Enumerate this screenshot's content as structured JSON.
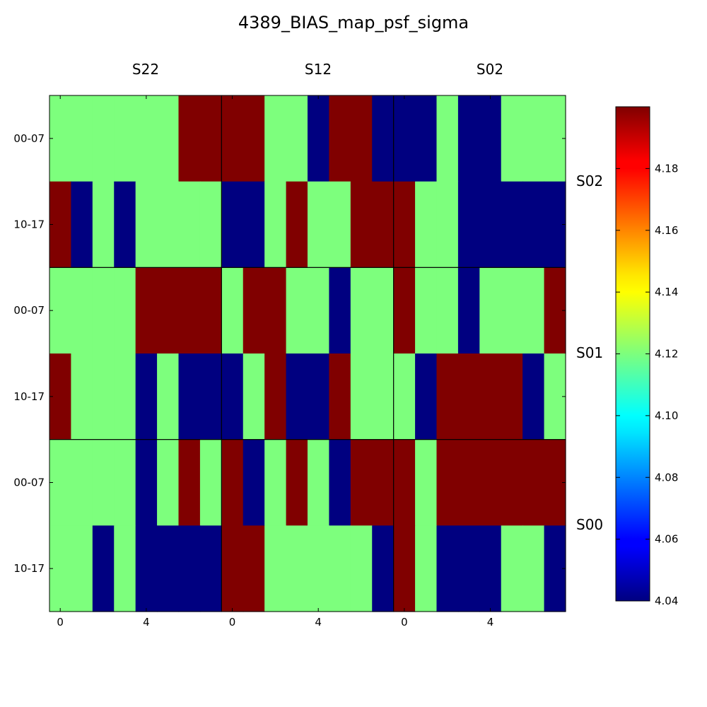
{
  "chart_data": {
    "type": "heatmap",
    "title": "4389_BIAS_map_psf_sigma",
    "panel_columns": [
      "S22",
      "S12",
      "S02"
    ],
    "panel_rows": [
      "S02",
      "S01",
      "S00"
    ],
    "y_tick_labels": [
      "00-07",
      "10-17"
    ],
    "x_tick_labels": [
      "0",
      "4"
    ],
    "x_tick_values": [
      0,
      4
    ],
    "cells_per_panel_x": 8,
    "cells_per_panel_y": 2,
    "colormap": "jet",
    "colorbar": {
      "min": 4.04,
      "max": 4.2,
      "ticks": [
        "4.04",
        "4.06",
        "4.08",
        "4.10",
        "4.12",
        "4.14",
        "4.16",
        "4.18"
      ],
      "tick_values": [
        4.04,
        4.06,
        4.08,
        4.1,
        4.12,
        4.14,
        4.16,
        4.18
      ]
    },
    "value_levels": {
      "low": 4.04,
      "mid": 4.12,
      "high": 4.2
    },
    "grid": [
      [
        [
          [
            1,
            1,
            1,
            1,
            1,
            1,
            2,
            2
          ],
          [
            2,
            0,
            1,
            0,
            1,
            1,
            1,
            1
          ]
        ],
        [
          [
            2,
            2,
            1,
            1,
            0,
            2,
            2,
            0
          ],
          [
            0,
            0,
            1,
            2,
            1,
            1,
            2,
            2
          ]
        ],
        [
          [
            0,
            0,
            1,
            0,
            0,
            1,
            1,
            1
          ],
          [
            2,
            1,
            1,
            0,
            0,
            0,
            0,
            0
          ]
        ]
      ],
      [
        [
          [
            1,
            1,
            1,
            1,
            2,
            2,
            2,
            2
          ],
          [
            2,
            1,
            1,
            1,
            0,
            1,
            0,
            0
          ]
        ],
        [
          [
            1,
            2,
            2,
            1,
            1,
            0,
            1,
            1
          ],
          [
            0,
            1,
            2,
            0,
            0,
            2,
            1,
            1
          ]
        ],
        [
          [
            2,
            1,
            1,
            0,
            1,
            1,
            1,
            2
          ],
          [
            1,
            0,
            2,
            2,
            2,
            2,
            0,
            1
          ]
        ]
      ],
      [
        [
          [
            1,
            1,
            1,
            1,
            0,
            1,
            2,
            1
          ],
          [
            1,
            1,
            0,
            1,
            0,
            0,
            0,
            0
          ]
        ],
        [
          [
            2,
            0,
            1,
            2,
            1,
            0,
            2,
            2
          ],
          [
            2,
            2,
            1,
            1,
            1,
            1,
            1,
            0
          ]
        ],
        [
          [
            2,
            1,
            2,
            2,
            2,
            2,
            2,
            2
          ],
          [
            2,
            1,
            0,
            0,
            0,
            1,
            1,
            0
          ]
        ]
      ]
    ]
  }
}
